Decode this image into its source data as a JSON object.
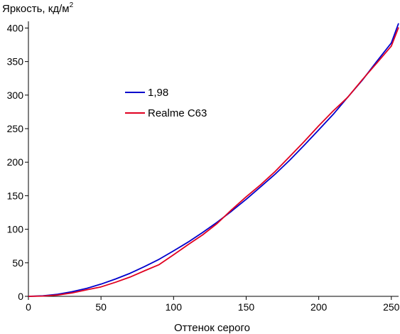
{
  "chart_data": {
    "type": "line",
    "title": "",
    "ylabel": "Яркость, кд/м",
    "ylabel_sup": "2",
    "xlabel": "Оттенок серого",
    "xlim": [
      0,
      255
    ],
    "ylim": [
      0,
      410
    ],
    "xticks": [
      0,
      50,
      100,
      150,
      200,
      250
    ],
    "yticks": [
      0,
      50,
      100,
      150,
      200,
      250,
      300,
      350,
      400
    ],
    "grid": false,
    "legend_position": "upper-left-center",
    "series": [
      {
        "name": "1,98",
        "color": "#0000cc",
        "x": [
          0,
          10,
          20,
          30,
          40,
          50,
          60,
          70,
          80,
          90,
          100,
          110,
          120,
          130,
          140,
          150,
          160,
          170,
          180,
          190,
          200,
          210,
          220,
          230,
          240,
          250,
          255
        ],
        "y": [
          0,
          0.7,
          3.1,
          6.9,
          11.8,
          18.2,
          25.8,
          34.3,
          44.4,
          55.2,
          67.8,
          80.8,
          95.2,
          110.5,
          127.0,
          144.7,
          163.4,
          182.2,
          203.0,
          225.2,
          248.1,
          271.4,
          297.0,
          322.2,
          350.4,
          377.8,
          407
        ]
      },
      {
        "name": "Realme C63",
        "color": "#e00020",
        "x": [
          0,
          10,
          20,
          30,
          40,
          50,
          60,
          70,
          80,
          90,
          100,
          110,
          120,
          130,
          140,
          150,
          160,
          170,
          180,
          190,
          200,
          210,
          220,
          230,
          240,
          250,
          255
        ],
        "y": [
          0,
          0.4,
          1.9,
          5.1,
          9.6,
          14.1,
          21.0,
          28.7,
          38.1,
          47.2,
          62.0,
          77.0,
          91.6,
          108.6,
          129.0,
          148.4,
          166.4,
          186.1,
          208.5,
          230.8,
          254.3,
          276.5,
          296.8,
          322.9,
          347.8,
          373.1,
          401
        ]
      }
    ]
  }
}
